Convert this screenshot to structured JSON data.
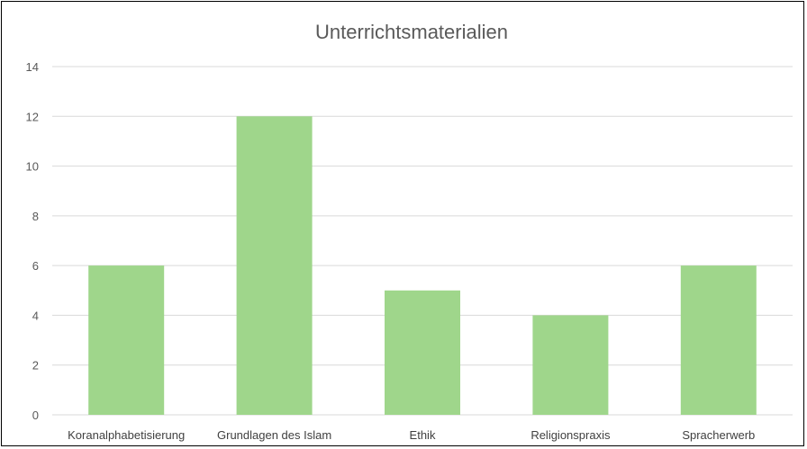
{
  "chart_data": {
    "type": "bar",
    "title": "Unterrichtsmaterialien",
    "categories": [
      "Koranalphabetisierung",
      "Grundlagen des Islam",
      "Ethik",
      "Religionspraxis",
      "Spracherwerb"
    ],
    "values": [
      6,
      12,
      5,
      4,
      6
    ],
    "xlabel": "",
    "ylabel": "",
    "ylim": [
      0,
      14
    ],
    "yticks": [
      "0",
      "2",
      "4",
      "6",
      "8",
      "10",
      "12",
      "14"
    ],
    "grid": true,
    "legend": "none",
    "bar_color": "#9fd68b",
    "grid_color": "#d9d9d9"
  }
}
